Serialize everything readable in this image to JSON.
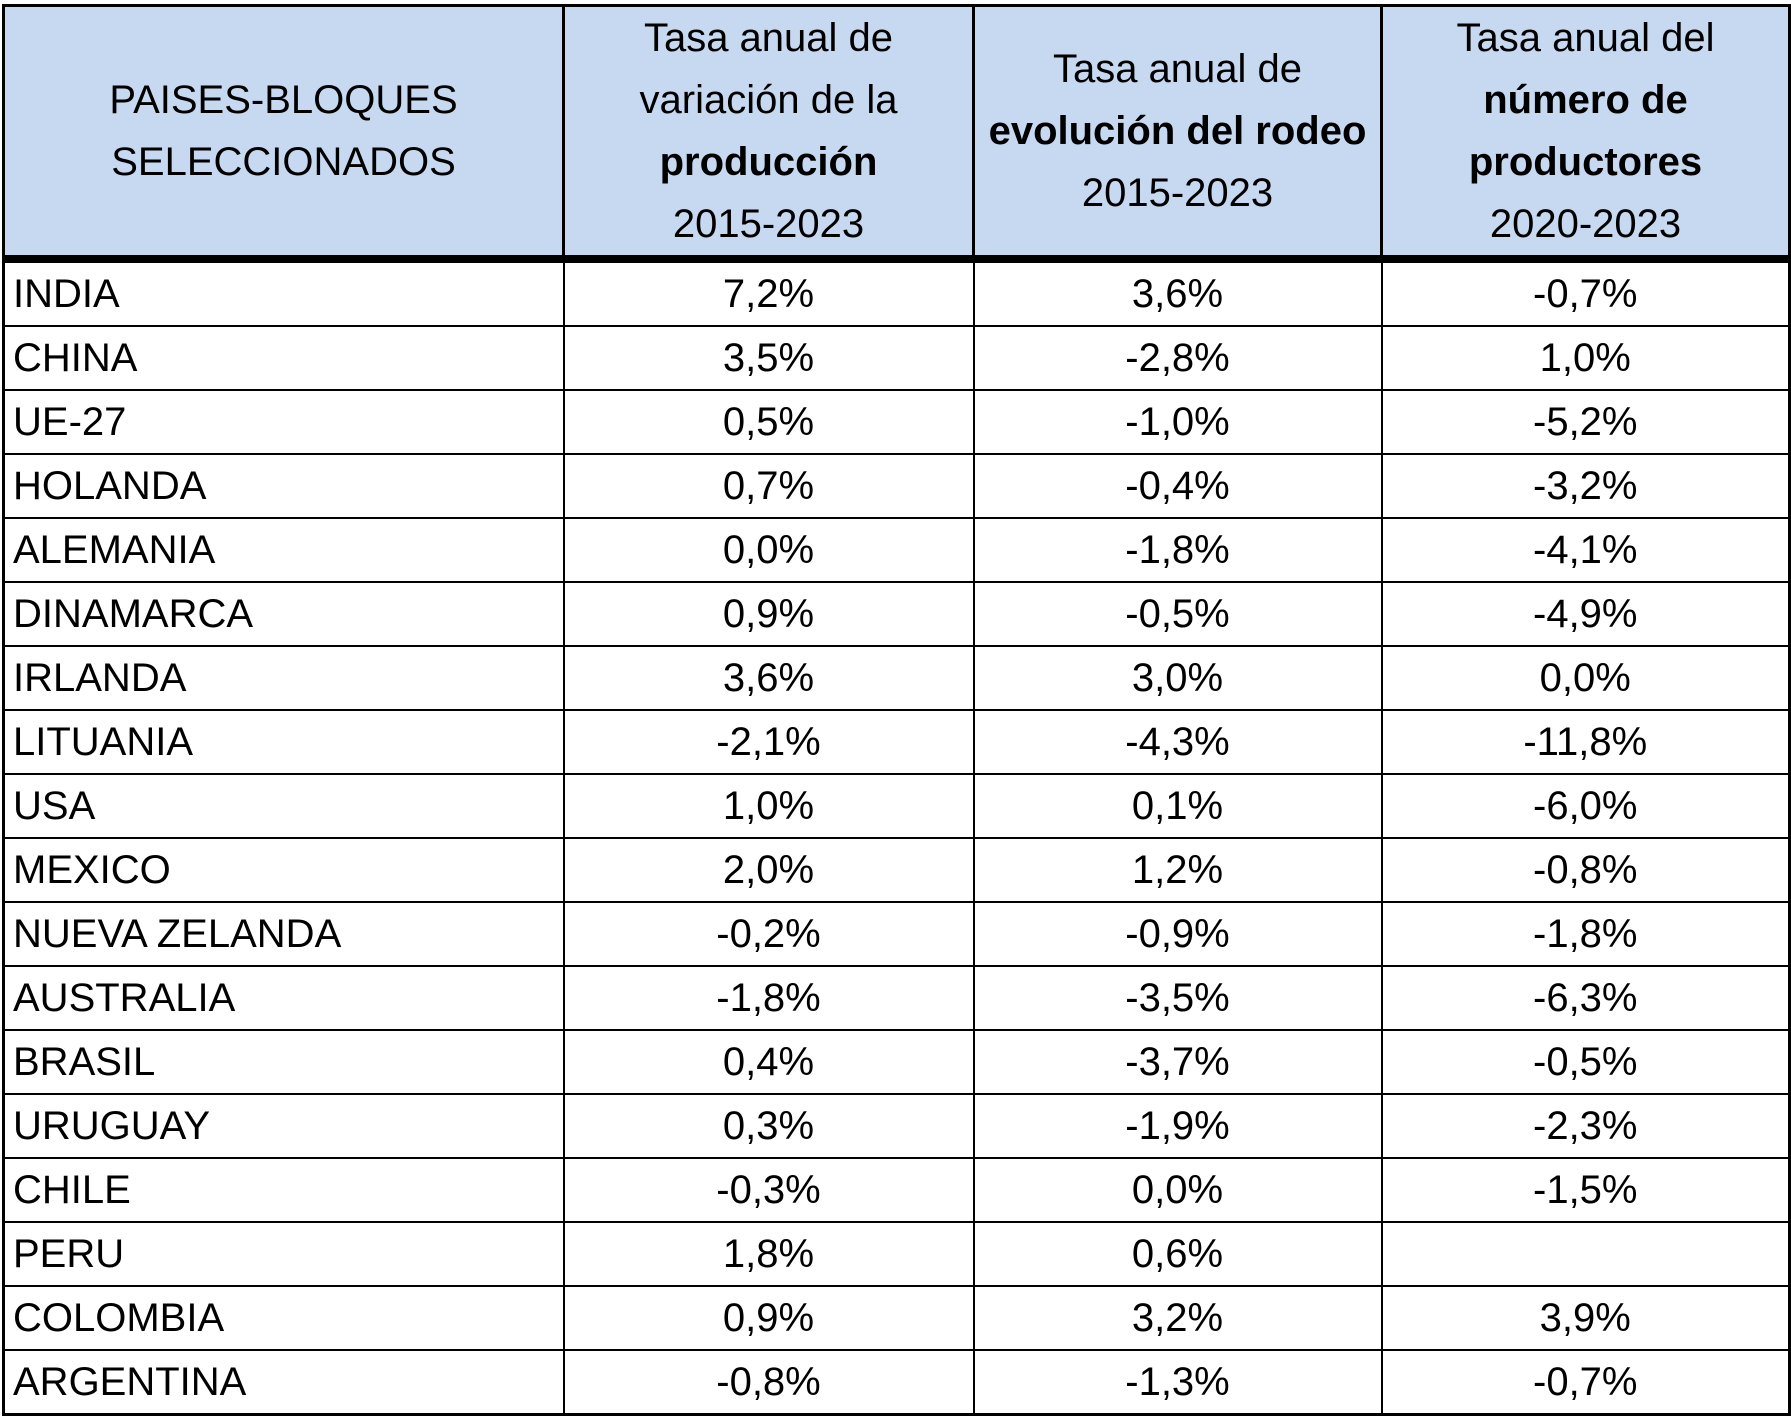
{
  "header": {
    "col0": [
      "PAISES-BLOQUES",
      "SELECCIONADOS"
    ],
    "col1": {
      "l1": "Tasa anual de",
      "l2": "variación de la",
      "l3": "producción",
      "l4": "2015-2023"
    },
    "col2": {
      "l1": "Tasa anual de",
      "l2": "evolución del rodeo",
      "l3": "2015-2023"
    },
    "col3": {
      "l1": "Tasa anual del",
      "l2": "número de",
      "l3": "productores",
      "l4": "2020-2023"
    }
  },
  "rows": [
    {
      "country": "INDIA",
      "produccion": "7,2%",
      "rodeo": "3,6%",
      "productores": "-0,7%"
    },
    {
      "country": "CHINA",
      "produccion": "3,5%",
      "rodeo": "-2,8%",
      "productores": "1,0%"
    },
    {
      "country": "UE-27",
      "produccion": "0,5%",
      "rodeo": "-1,0%",
      "productores": "-5,2%"
    },
    {
      "country": "HOLANDA",
      "produccion": "0,7%",
      "rodeo": "-0,4%",
      "productores": "-3,2%"
    },
    {
      "country": "ALEMANIA",
      "produccion": "0,0%",
      "rodeo": "-1,8%",
      "productores": "-4,1%"
    },
    {
      "country": "DINAMARCA",
      "produccion": "0,9%",
      "rodeo": "-0,5%",
      "productores": "-4,9%"
    },
    {
      "country": "IRLANDA",
      "produccion": "3,6%",
      "rodeo": "3,0%",
      "productores": "0,0%"
    },
    {
      "country": "LITUANIA",
      "produccion": "-2,1%",
      "rodeo": "-4,3%",
      "productores": "-11,8%"
    },
    {
      "country": "USA",
      "produccion": "1,0%",
      "rodeo": "0,1%",
      "productores": "-6,0%"
    },
    {
      "country": "MEXICO",
      "produccion": "2,0%",
      "rodeo": "1,2%",
      "productores": "-0,8%"
    },
    {
      "country": "NUEVA ZELANDA",
      "produccion": "-0,2%",
      "rodeo": "-0,9%",
      "productores": "-1,8%"
    },
    {
      "country": "AUSTRALIA",
      "produccion": "-1,8%",
      "rodeo": "-3,5%",
      "productores": "-6,3%"
    },
    {
      "country": "BRASIL",
      "produccion": "0,4%",
      "rodeo": "-3,7%",
      "productores": "-0,5%"
    },
    {
      "country": "URUGUAY",
      "produccion": "0,3%",
      "rodeo": "-1,9%",
      "productores": "-2,3%"
    },
    {
      "country": "CHILE",
      "produccion": "-0,3%",
      "rodeo": "0,0%",
      "productores": "-1,5%"
    },
    {
      "country": "PERU",
      "produccion": "1,8%",
      "rodeo": "0,6%",
      "productores": ""
    },
    {
      "country": "COLOMBIA",
      "produccion": "0,9%",
      "rodeo": "3,2%",
      "productores": "3,9%"
    },
    {
      "country": "ARGENTINA",
      "produccion": "-0,8%",
      "rodeo": "-1,3%",
      "productores": "-0,7%"
    }
  ],
  "colors": {
    "header_bg": "#c6d9f1",
    "border": "#000000"
  }
}
